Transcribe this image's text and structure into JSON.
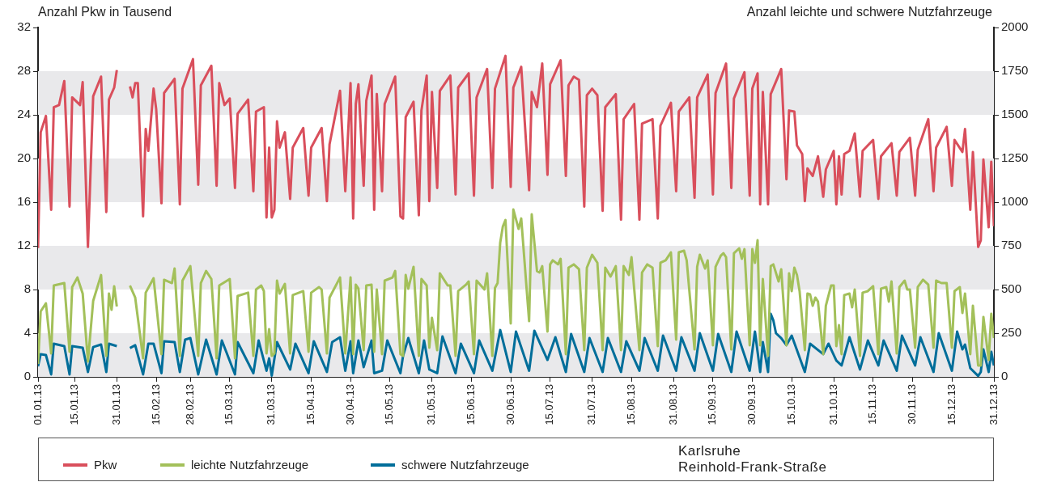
{
  "chart_data": {
    "type": "line",
    "ylabel": "Anzahl Pkw in Tausend",
    "y2label": "Anzahl leichte und schwere Nutzfahrzeuge",
    "annotations": [
      "Karlsruhe",
      "Reinhold-Frank-Straße"
    ],
    "xlim": [
      "--01-01",
      "--12-31"
    ],
    "xticks": [
      {
        "value": "--01-01",
        "label": "01.01.13"
      },
      {
        "value": "--01-15",
        "label": "15.01.13"
      },
      {
        "value": "--01-31",
        "label": "31.01.13"
      },
      {
        "value": "--02-15",
        "label": "15.02.13"
      },
      {
        "value": "--02-28",
        "label": "28.02.13"
      },
      {
        "value": "--03-15",
        "label": "15.03.13"
      },
      {
        "value": "--03-31",
        "label": "31.03.13"
      },
      {
        "value": "--04-15",
        "label": "15.04.13"
      },
      {
        "value": "--04-30",
        "label": "30.04.13"
      },
      {
        "value": "--05-15",
        "label": "15.05.13"
      },
      {
        "value": "--05-31",
        "label": "31.05.13"
      },
      {
        "value": "--06-15",
        "label": "15.06.13"
      },
      {
        "value": "--06-30",
        "label": "30.06.13"
      },
      {
        "value": "--07-15",
        "label": "15.07.13"
      },
      {
        "value": "--07-31",
        "label": "31.07.13"
      },
      {
        "value": "--08-15",
        "label": "15.08.13"
      },
      {
        "value": "--08-31",
        "label": "31.08.13"
      },
      {
        "value": "--09-15",
        "label": "15.09.13"
      },
      {
        "value": "--09-30",
        "label": "30.09.13"
      },
      {
        "value": "--10-15",
        "label": "15.10.13"
      },
      {
        "value": "--10-31",
        "label": "31.10.13"
      },
      {
        "value": "--11-15",
        "label": "15.11.13"
      },
      {
        "value": "--11-30",
        "label": "30.11.13"
      },
      {
        "value": "--12-15",
        "label": "15.12.13"
      },
      {
        "value": "--12-31",
        "label": "31.12.13"
      }
    ],
    "ylim": [
      0,
      32
    ],
    "yticks": [
      0,
      4,
      8,
      12,
      16,
      20,
      24,
      28,
      32
    ],
    "y2lim": [
      0,
      2000
    ],
    "y2ticks": [
      0,
      250,
      500,
      750,
      1000,
      1250,
      1500,
      1750,
      2000
    ],
    "bands": [
      {
        "axis": "y",
        "from": 0,
        "to": 4,
        "color": "#e9e9eb"
      },
      {
        "axis": "y",
        "from": 8,
        "to": 12,
        "color": "#e9e9eb"
      },
      {
        "axis": "y",
        "from": 16,
        "to": 20,
        "color": "#e9e9eb"
      },
      {
        "axis": "y",
        "from": 24,
        "to": 28,
        "color": "#e9e9eb"
      }
    ],
    "legend": "bottom",
    "marker": "none",
    "line_style": "solid",
    "series": [
      {
        "name": "Pkw",
        "color": "#d94f5c",
        "x": [
          "--01-01",
          "--01-02",
          "--01-04",
          "--01-06",
          "--01-07",
          "--01-09",
          "--01-11",
          "--01-13",
          "--01-14",
          "--01-17",
          "--01-18",
          "--01-20",
          "--01-22",
          "--01-25",
          "--01-27",
          "--01-28",
          "--01-30",
          "--01-31",
          "--02-02",
          "--02-05",
          "--02-06",
          "--02-07",
          "--02-08",
          "--02-10",
          "--02-11",
          "--02-12",
          "--02-14",
          "--02-15",
          "--02-17",
          "--02-18",
          "--02-22",
          "--02-24",
          "--02-25",
          "--03-01",
          "--03-03",
          "--03-04",
          "--03-08",
          "--03-10",
          "--03-11",
          "--03-13",
          "--03-15",
          "--03-17",
          "--03-18",
          "--03-22",
          "--03-24",
          "--03-25",
          "--03-28",
          "--03-29",
          "--03-30",
          "--03-31",
          "--04-01",
          "--04-02",
          "--04-03",
          "--04-05",
          "--04-07",
          "--04-08",
          "--04-12",
          "--04-14",
          "--04-15",
          "--04-19",
          "--04-21",
          "--04-22",
          "--04-26",
          "--04-28",
          "--04-30",
          "--05-01",
          "--05-02",
          "--05-03",
          "--05-05",
          "--05-06",
          "--05-08",
          "--05-09",
          "--05-10",
          "--05-12",
          "--05-13",
          "--05-17",
          "--05-19",
          "--05-20",
          "--05-21",
          "--05-24",
          "--05-26",
          "--05-27",
          "--05-29",
          "--05-30",
          "--05-31",
          "--06-02",
          "--06-03",
          "--06-07",
          "--06-09",
          "--06-10",
          "--06-14",
          "--06-16",
          "--06-17",
          "--06-21",
          "--06-23",
          "--06-24",
          "--06-28",
          "--06-30",
          "--07-01",
          "--07-04",
          "--07-07",
          "--07-08",
          "--07-10",
          "--07-12",
          "--07-14",
          "--07-15",
          "--07-19",
          "--07-21",
          "--07-22",
          "--07-24",
          "--07-26",
          "--07-28",
          "--07-29",
          "--07-31",
          "--08-02",
          "--08-04",
          "--08-05",
          "--08-09",
          "--08-11",
          "--08-12",
          "--08-16",
          "--08-18",
          "--08-19",
          "--08-23",
          "--08-25",
          "--08-26",
          "--08-30",
          "--09-01",
          "--09-02",
          "--09-06",
          "--09-08",
          "--09-09",
          "--09-13",
          "--09-15",
          "--09-16",
          "--09-20",
          "--09-22",
          "--09-23",
          "--09-27",
          "--09-29",
          "--09-30",
          "--10-02",
          "--10-03",
          "--10-04",
          "--10-06",
          "--10-07",
          "--10-11",
          "--10-13",
          "--10-14",
          "--10-16",
          "--10-17",
          "--10-19",
          "--10-20",
          "--10-21",
          "--10-23",
          "--10-25",
          "--10-27",
          "--10-28",
          "--10-31",
          "--11-01",
          "--11-02",
          "--11-03",
          "--11-04",
          "--11-06",
          "--11-08",
          "--11-10",
          "--11-11",
          "--11-15",
          "--11-17",
          "--11-18",
          "--11-22",
          "--11-24",
          "--11-25",
          "--11-29",
          "--12-01",
          "--12-02",
          "--12-06",
          "--12-08",
          "--12-09",
          "--12-13",
          "--12-15",
          "--12-16",
          "--12-19",
          "--12-20",
          "--12-22",
          "--12-23",
          "--12-25",
          "--12-26",
          "--12-27",
          "--12-29",
          "--12-30",
          "--12-31"
        ],
        "values": [
          11.8,
          22.4,
          23.9,
          15.3,
          24.7,
          24.9,
          27.1,
          15.6,
          25.6,
          24.9,
          27.0,
          11.9,
          25.7,
          27.5,
          15.1,
          25.4,
          26.5,
          28.1,
          null,
          26.6,
          25.6,
          26.9,
          26.9,
          14.7,
          22.7,
          20.7,
          26.4,
          24.5,
          15.9,
          26.0,
          27.3,
          15.8,
          26.4,
          29.1,
          17.6,
          26.7,
          28.5,
          17.5,
          26.9,
          24.9,
          25.5,
          17.3,
          24.1,
          25.4,
          17.0,
          24.3,
          24.7,
          14.6,
          21.0,
          14.6,
          15.3,
          23.4,
          21.0,
          22.4,
          16.3,
          21.0,
          22.8,
          16.6,
          21.0,
          22.8,
          16.1,
          21.3,
          26.2,
          17.0,
          26.9,
          14.5,
          25.0,
          26.8,
          17.5,
          25.3,
          27.6,
          15.3,
          25.9,
          17.0,
          25.0,
          27.5,
          14.7,
          14.5,
          23.8,
          25.2,
          14.8,
          24.4,
          27.6,
          16.1,
          26.1,
          17.3,
          26.2,
          27.6,
          16.7,
          26.5,
          27.8,
          16.6,
          25.6,
          28.2,
          17.3,
          26.4,
          29.4,
          17.4,
          26.5,
          28.4,
          17.1,
          26.1,
          24.7,
          28.7,
          18.5,
          26.8,
          29.0,
          18.4,
          26.7,
          27.5,
          27.2,
          15.6,
          25.8,
          26.4,
          25.8,
          15.2,
          24.7,
          25.9,
          14.4,
          23.6,
          25.0,
          14.4,
          23.2,
          23.6,
          14.5,
          23.0,
          25.1,
          17.0,
          24.3,
          25.6,
          16.4,
          25.6,
          27.7,
          16.7,
          26.0,
          28.7,
          17.3,
          25.5,
          27.9,
          16.6,
          26.4,
          27.8,
          15.8,
          26.1,
          15.8,
          25.9,
          28.2,
          18.1,
          24.4,
          24.3,
          21.2,
          20.4,
          16.1,
          19.1,
          18.4,
          20.2,
          16.5,
          19.0,
          20.7,
          15.8,
          20.2,
          16.7,
          20.4,
          20.7,
          22.3,
          16.5,
          20.7,
          21.7,
          16.3,
          20.2,
          21.4,
          16.6,
          20.6,
          21.9,
          16.6,
          20.8,
          23.6,
          17.0,
          21.0,
          22.9,
          17.5,
          21.7,
          20.6,
          22.7,
          15.3,
          20.6,
          11.9,
          12.5,
          19.9,
          13.7,
          19.7,
          13.8
        ]
      },
      {
        "name": "leichte Nutzfahrzeuge",
        "color": "#a3c05a",
        "axis": "y2",
        "x": [
          "--01-01",
          "--01-02",
          "--01-04",
          "--01-06",
          "--01-07",
          "--01-11",
          "--01-13",
          "--01-14",
          "--01-16",
          "--01-18",
          "--01-20",
          "--01-22",
          "--01-25",
          "--01-27",
          "--01-28",
          "--01-29",
          "--01-30",
          "--01-31",
          "--02-02",
          "--02-05",
          "--02-07",
          "--02-10",
          "--02-11",
          "--02-14",
          "--02-17",
          "--02-18",
          "--02-21",
          "--02-22",
          "--02-24",
          "--02-25",
          "--02-28",
          "--03-03",
          "--03-04",
          "--03-06",
          "--03-08",
          "--03-10",
          "--03-11",
          "--03-15",
          "--03-17",
          "--03-18",
          "--03-22",
          "--03-24",
          "--03-25",
          "--03-27",
          "--03-28",
          "--03-29",
          "--03-30",
          "--03-31",
          "--04-01",
          "--04-02",
          "--04-03",
          "--04-05",
          "--04-07",
          "--04-08",
          "--04-12",
          "--04-14",
          "--04-15",
          "--04-18",
          "--04-19",
          "--04-21",
          "--04-22",
          "--04-26",
          "--04-28",
          "--04-30",
          "--05-01",
          "--05-02",
          "--05-03",
          "--05-05",
          "--05-06",
          "--05-08",
          "--05-09",
          "--05-10",
          "--05-12",
          "--05-13",
          "--05-16",
          "--05-17",
          "--05-19",
          "--05-20",
          "--05-21",
          "--05-22",
          "--05-24",
          "--05-26",
          "--05-27",
          "--05-29",
          "--05-30",
          "--05-31",
          "--06-02",
          "--06-03",
          "--06-06",
          "--06-07",
          "--06-09",
          "--06-10",
          "--06-13",
          "--06-14",
          "--06-16",
          "--06-17",
          "--06-20",
          "--06-21",
          "--06-23",
          "--06-24",
          "--06-25",
          "--06-26",
          "--06-27",
          "--06-28",
          "--06-30",
          "--07-01",
          "--07-03",
          "--07-04",
          "--07-07",
          "--07-08",
          "--07-10",
          "--07-11",
          "--07-12",
          "--07-14",
          "--07-15",
          "--07-16",
          "--07-18",
          "--07-19",
          "--07-21",
          "--07-22",
          "--07-24",
          "--07-26",
          "--07-28",
          "--07-29",
          "--07-31",
          "--08-02",
          "--08-04",
          "--08-05",
          "--08-07",
          "--08-09",
          "--08-11",
          "--08-12",
          "--08-14",
          "--08-15",
          "--08-18",
          "--08-19",
          "--08-21",
          "--08-23",
          "--08-25",
          "--08-26",
          "--08-28",
          "--08-30",
          "--09-01",
          "--09-02",
          "--09-04",
          "--09-05",
          "--09-08",
          "--09-09",
          "--09-10",
          "--09-12",
          "--09-13",
          "--09-15",
          "--09-16",
          "--09-18",
          "--09-19",
          "--09-20",
          "--09-22",
          "--09-23",
          "--09-25",
          "--09-26",
          "--09-27",
          "--09-29",
          "--09-30",
          "--10-01",
          "--10-02",
          "--10-03",
          "--10-04",
          "--10-06",
          "--10-07",
          "--10-08",
          "--10-10",
          "--10-11",
          "--10-13",
          "--10-14",
          "--10-15",
          "--10-16",
          "--10-17",
          "--10-18",
          "--10-20",
          "--10-21",
          "--10-22",
          "--10-23",
          "--10-24",
          "--10-25",
          "--10-27",
          "--10-28",
          "--10-30",
          "--10-31",
          "--11-01",
          "--11-02",
          "--11-03",
          "--11-04",
          "--11-06",
          "--11-07",
          "--11-08",
          "--11-10",
          "--11-11",
          "--11-13",
          "--11-15",
          "--11-17",
          "--11-18",
          "--11-20",
          "--11-21",
          "--11-22",
          "--11-24",
          "--11-25",
          "--11-27",
          "--11-28",
          "--11-29",
          "--12-01",
          "--12-02",
          "--12-04",
          "--12-06",
          "--12-08",
          "--12-09",
          "--12-11",
          "--12-13",
          "--12-15",
          "--12-16",
          "--12-18",
          "--12-19",
          "--12-20",
          "--12-22",
          "--12-23",
          "--12-25",
          "--12-26",
          "--12-27",
          "--12-29",
          "--12-30",
          "--12-31"
        ],
        "values": [
          74,
          375,
          421,
          134,
          523,
          537,
          144,
          514,
          569,
          477,
          88,
          435,
          583,
          120,
          477,
          384,
          519,
          403,
          null,
          523,
          454,
          106,
          482,
          565,
          130,
          556,
          537,
          620,
          120,
          551,
          634,
          120,
          537,
          606,
          560,
          106,
          523,
          560,
          106,
          463,
          482,
          120,
          500,
          523,
          491,
          134,
          273,
          120,
          134,
          551,
          477,
          532,
          134,
          468,
          491,
          144,
          482,
          514,
          500,
          134,
          454,
          569,
          134,
          569,
          130,
          528,
          505,
          153,
          523,
          528,
          144,
          500,
          130,
          551,
          569,
          606,
          130,
          120,
          583,
          505,
          630,
          120,
          560,
          523,
          167,
          338,
          153,
          593,
          523,
          523,
          120,
          491,
          528,
          546,
          130,
          551,
          500,
          593,
          120,
          509,
          537,
          769,
          861,
          898,
          306,
          958,
          847,
          907,
          319,
          930,
          606,
          597,
          634,
          259,
          644,
          667,
          644,
          676,
          130,
          625,
          644,
          616,
          153,
          625,
          699,
          653,
          153,
          625,
          574,
          634,
          153,
          634,
          583,
          685,
          153,
          597,
          644,
          625,
          176,
          653,
          667,
          713,
          213,
          713,
          722,
          667,
          157,
          630,
          699,
          620,
          667,
          181,
          630,
          694,
          708,
          685,
          157,
          708,
          736,
          676,
          731,
          181,
          731,
          653,
          782,
          181,
          560,
          120,
          634,
          644,
          546,
          616,
          181,
          593,
          491,
          625,
          583,
          491,
          153,
          477,
          472,
          407,
          454,
          431,
          130,
          407,
          523,
          523,
          176,
          296,
          130,
          468,
          477,
          398,
          500,
          120,
          482,
          491,
          519,
          130,
          505,
          514,
          431,
          546,
          134,
          514,
          551,
          500,
          500,
          167,
          514,
          556,
          528,
          167,
          551,
          537,
          537,
          167,
          491,
          514,
          366,
          477,
          130,
          407,
          65,
          65,
          343,
          97,
          361,
          222
        ]
      },
      {
        "name": "schwere Nutzfahrzeuge",
        "color": "#006e9a",
        "axis": "y2",
        "x": [
          "--01-01",
          "--01-02",
          "--01-04",
          "--01-06",
          "--01-07",
          "--01-11",
          "--01-13",
          "--01-14",
          "--01-18",
          "--01-20",
          "--01-22",
          "--01-25",
          "--01-27",
          "--01-28",
          "--01-31",
          "--02-02",
          "--02-05",
          "--02-07",
          "--02-10",
          "--02-12",
          "--02-14",
          "--02-17",
          "--02-18",
          "--02-22",
          "--02-24",
          "--02-26",
          "--02-28",
          "--03-03",
          "--03-06",
          "--03-10",
          "--03-12",
          "--03-17",
          "--03-18",
          "--03-24",
          "--03-26",
          "--03-29",
          "--03-30",
          "--03-31",
          "--04-02",
          "--04-07",
          "--04-09",
          "--04-14",
          "--04-16",
          "--04-21",
          "--04-23",
          "--04-26",
          "--04-28",
          "--04-30",
          "--05-01",
          "--05-03",
          "--05-05",
          "--05-08",
          "--05-09",
          "--05-12",
          "--05-14",
          "--05-19",
          "--05-20",
          "--05-22",
          "--05-26",
          "--05-28",
          "--05-30",
          "--06-02",
          "--06-04",
          "--06-09",
          "--06-11",
          "--06-16",
          "--06-18",
          "--06-23",
          "--06-26",
          "--06-30",
          "--07-02",
          "--07-07",
          "--07-09",
          "--07-14",
          "--07-17",
          "--07-21",
          "--07-23",
          "--07-28",
          "--07-30",
          "--08-04",
          "--08-06",
          "--08-11",
          "--08-13",
          "--08-18",
          "--08-20",
          "--08-25",
          "--08-27",
          "--09-01",
          "--09-03",
          "--09-08",
          "--09-10",
          "--09-15",
          "--09-17",
          "--09-22",
          "--09-24",
          "--09-29",
          "--10-01",
          "--10-03",
          "--10-04",
          "--10-06",
          "--10-07",
          "--10-08",
          "--10-09",
          "--10-11",
          "--10-13",
          "--10-15",
          "--10-20",
          "--10-22",
          "--10-27",
          "--10-29",
          "--11-01",
          "--11-03",
          "--11-06",
          "--11-10",
          "--11-13",
          "--11-17",
          "--11-19",
          "--11-24",
          "--11-26",
          "--12-01",
          "--12-03",
          "--12-08",
          "--12-10",
          "--12-15",
          "--12-17",
          "--12-19",
          "--12-20",
          "--12-22",
          "--12-25",
          "--12-26",
          "--12-27",
          "--12-29",
          "--12-30",
          "--12-31"
        ],
        "values": [
          60,
          130,
          125,
          14,
          190,
          176,
          14,
          176,
          167,
          28,
          171,
          185,
          28,
          190,
          176,
          null,
          165,
          181,
          14,
          190,
          190,
          21,
          204,
          199,
          28,
          213,
          222,
          14,
          213,
          14,
          208,
          14,
          199,
          21,
          208,
          35,
          106,
          7,
          199,
          42,
          190,
          21,
          204,
          28,
          199,
          227,
          35,
          204,
          21,
          208,
          56,
          208,
          21,
          35,
          208,
          21,
          120,
          222,
          21,
          208,
          42,
          21,
          231,
          21,
          190,
          21,
          208,
          35,
          268,
          28,
          259,
          35,
          264,
          97,
          227,
          28,
          245,
          28,
          222,
          28,
          222,
          28,
          204,
          35,
          222,
          35,
          236,
          35,
          227,
          35,
          250,
          35,
          245,
          28,
          259,
          35,
          259,
          28,
          199,
          28,
          361,
          324,
          250,
          222,
          181,
          236,
          28,
          190,
          130,
          190,
          93,
          65,
          227,
          42,
          208,
          65,
          208,
          35,
          236,
          65,
          227,
          28,
          250,
          35,
          259,
          157,
          185,
          50,
          5,
          28,
          157,
          28,
          143,
          65
        ]
      }
    ]
  }
}
